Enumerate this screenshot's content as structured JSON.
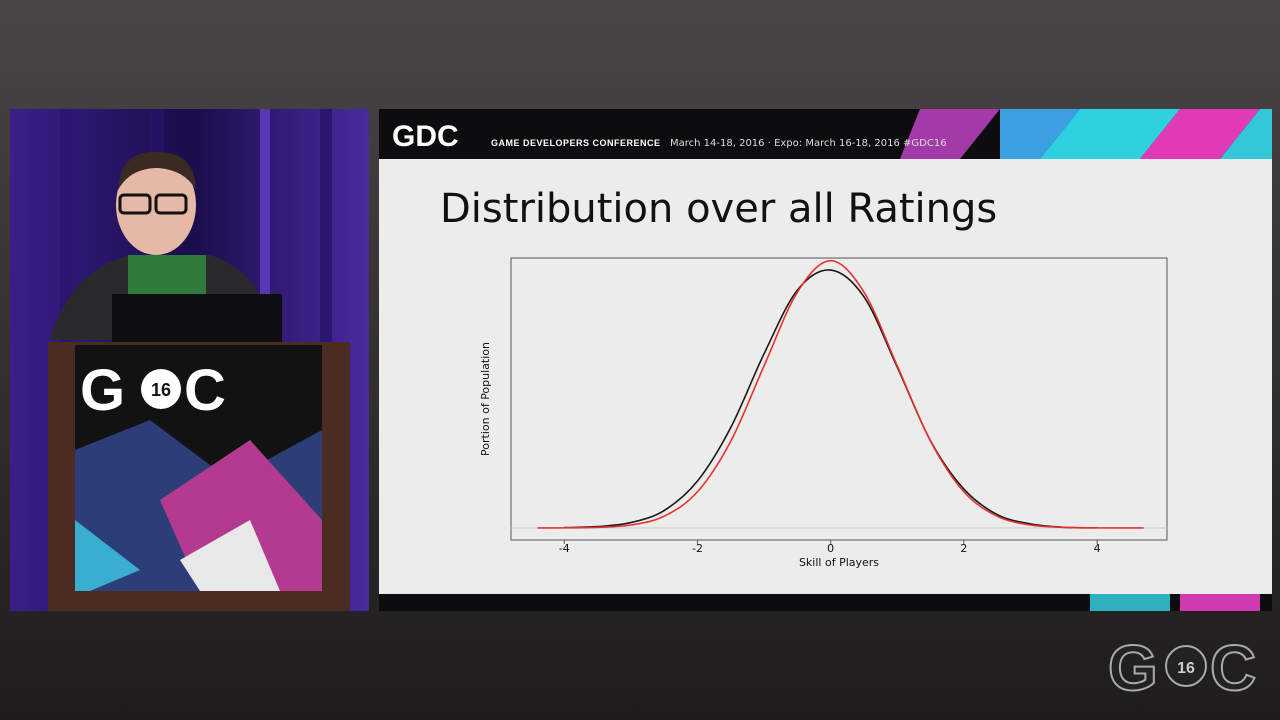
{
  "header": {
    "logo": "GDC",
    "conference": "GAME DEVELOPERS CONFERENCE",
    "dates": "March 14-18, 2016 · Expo: March 16-18, 2016 #GDC16"
  },
  "podium": {
    "logo_left": "G",
    "badge": "16",
    "logo_right": "C"
  },
  "corner": {
    "logo_left": "G",
    "badge": "16",
    "logo_right": "C"
  },
  "chart_data": {
    "type": "line",
    "title": "Distribution over all Ratings",
    "xlabel": "Skill of Players",
    "ylabel": "Portion of Population",
    "x": [
      -4.4,
      -4,
      -3.5,
      -3,
      -2.5,
      -2,
      -1.5,
      -1,
      -0.5,
      0,
      0.5,
      1,
      1.5,
      2,
      2.5,
      3,
      3.5,
      4,
      4.7
    ],
    "series": [
      {
        "color": "#1a1a1a",
        "values": [
          null,
          0.0005,
          0.002,
          0.008,
          0.026,
          0.07,
          0.15,
          0.26,
          0.355,
          0.385,
          0.345,
          0.24,
          0.13,
          0.058,
          0.02,
          0.006,
          0.001,
          0.0002,
          null
        ]
      },
      {
        "color": "#e8312f",
        "values": [
          3e-05,
          0.0001,
          0.0009,
          0.0044,
          0.0175,
          0.054,
          0.1295,
          0.242,
          0.352,
          0.399,
          0.352,
          0.242,
          0.1295,
          0.054,
          0.0175,
          0.0044,
          0.0009,
          0.0001,
          1e-05
        ]
      }
    ],
    "xlim": [
      -4.8,
      5.05
    ],
    "ylim": [
      -0.018,
      0.403
    ],
    "xticks": [
      -4,
      -2,
      0,
      2,
      4
    ]
  }
}
